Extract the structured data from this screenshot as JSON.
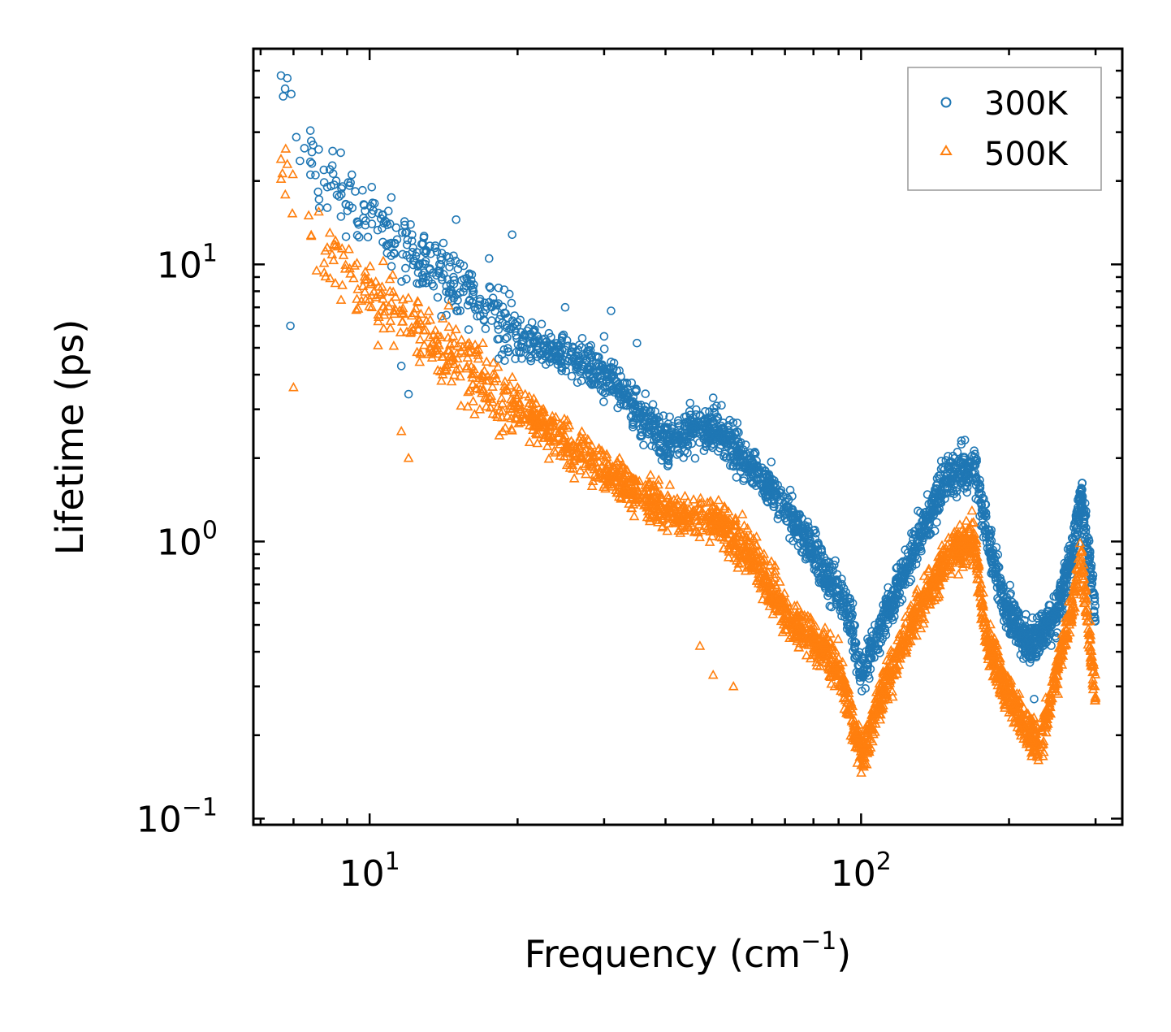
{
  "chart_data": {
    "type": "scatter",
    "title": "",
    "xlabel": "Frequency (cm",
    "xlabel_sup": "−1",
    "xlabel_end": ")",
    "ylabel": "Lifetime (ps)",
    "xscale": "log",
    "yscale": "log",
    "xlim": [
      5.8,
      340
    ],
    "ylim": [
      0.095,
      60
    ],
    "x_ticks": [
      {
        "value": 10,
        "base": "10",
        "exp": "1"
      },
      {
        "value": 100,
        "base": "10",
        "exp": "2"
      }
    ],
    "y_ticks": [
      {
        "value": 0.1,
        "base": "10",
        "exp": "−1"
      },
      {
        "value": 1,
        "base": "10",
        "exp": "0"
      },
      {
        "value": 10,
        "base": "10",
        "exp": "1"
      }
    ],
    "legend_position": "top-right",
    "series": [
      {
        "name": "300K",
        "color": "#1f77b4",
        "marker": "circle",
        "trend": [
          [
            6.5,
            45
          ],
          [
            8,
            22
          ],
          [
            10,
            14
          ],
          [
            15,
            8.5
          ],
          [
            20,
            5.5
          ],
          [
            30,
            4
          ],
          [
            40,
            2.3
          ],
          [
            50,
            2.6
          ],
          [
            55,
            2.2
          ],
          [
            65,
            1.6
          ],
          [
            75,
            1.1
          ],
          [
            85,
            0.75
          ],
          [
            95,
            0.55
          ],
          [
            100,
            0.32
          ],
          [
            110,
            0.5
          ],
          [
            130,
            1.0
          ],
          [
            150,
            1.7
          ],
          [
            170,
            1.9
          ],
          [
            180,
            1.1
          ],
          [
            195,
            0.6
          ],
          [
            220,
            0.42
          ],
          [
            250,
            0.55
          ],
          [
            270,
            0.95
          ],
          [
            280,
            1.5
          ],
          [
            300,
            0.55
          ]
        ],
        "outliers": [
          [
            6.6,
            48
          ],
          [
            6.8,
            47
          ],
          [
            6.9,
            6.0
          ],
          [
            7.9,
            16
          ],
          [
            8.2,
            19
          ],
          [
            8.3,
            22
          ],
          [
            10.1,
            19
          ],
          [
            10.6,
            13.5
          ],
          [
            11,
            14
          ],
          [
            11.2,
            11
          ],
          [
            11.6,
            4.3
          ],
          [
            12,
            3.4
          ],
          [
            12.2,
            12.8
          ],
          [
            13,
            11
          ],
          [
            13.4,
            8.5
          ],
          [
            14,
            6.5
          ],
          [
            15,
            14.5
          ],
          [
            16,
            8.5
          ],
          [
            17.5,
            10.5
          ],
          [
            19.5,
            12.8
          ],
          [
            25,
            7
          ],
          [
            30,
            5.5
          ],
          [
            31,
            6.8
          ],
          [
            35,
            5.2
          ],
          [
            50,
            3.3
          ],
          [
            52,
            3.1
          ],
          [
            220,
            0.43
          ],
          [
            225,
            0.27
          ],
          [
            240,
            0.52
          ]
        ]
      },
      {
        "name": "500K",
        "color": "#ff7f0e",
        "marker": "triangle",
        "trend": [
          [
            6.5,
            23
          ],
          [
            8,
            12
          ],
          [
            10,
            8
          ],
          [
            15,
            4.5
          ],
          [
            20,
            3.0
          ],
          [
            30,
            1.8
          ],
          [
            40,
            1.3
          ],
          [
            50,
            1.2
          ],
          [
            60,
            0.9
          ],
          [
            70,
            0.55
          ],
          [
            80,
            0.45
          ],
          [
            90,
            0.35
          ],
          [
            100,
            0.17
          ],
          [
            110,
            0.28
          ],
          [
            130,
            0.55
          ],
          [
            150,
            0.9
          ],
          [
            170,
            1.0
          ],
          [
            180,
            0.45
          ],
          [
            195,
            0.3
          ],
          [
            230,
            0.18
          ],
          [
            250,
            0.33
          ],
          [
            270,
            0.6
          ],
          [
            280,
            0.9
          ],
          [
            300,
            0.27
          ]
        ],
        "outliers": [
          [
            6.6,
            24
          ],
          [
            6.8,
            23
          ],
          [
            7.0,
            3.6
          ],
          [
            7.8,
            9.5
          ],
          [
            8.3,
            13
          ],
          [
            8.2,
            11.5
          ],
          [
            10.1,
            7
          ],
          [
            10.4,
            5.1
          ],
          [
            10.6,
            8.3
          ],
          [
            11,
            8
          ],
          [
            11.6,
            2.5
          ],
          [
            12,
            2.0
          ],
          [
            13,
            5.8
          ],
          [
            14,
            3.8
          ],
          [
            16,
            4.8
          ],
          [
            17,
            5.2
          ],
          [
            18,
            4.0
          ],
          [
            20,
            3.6
          ],
          [
            47,
            0.42
          ],
          [
            50,
            0.33
          ],
          [
            55,
            0.3
          ]
        ]
      }
    ]
  }
}
